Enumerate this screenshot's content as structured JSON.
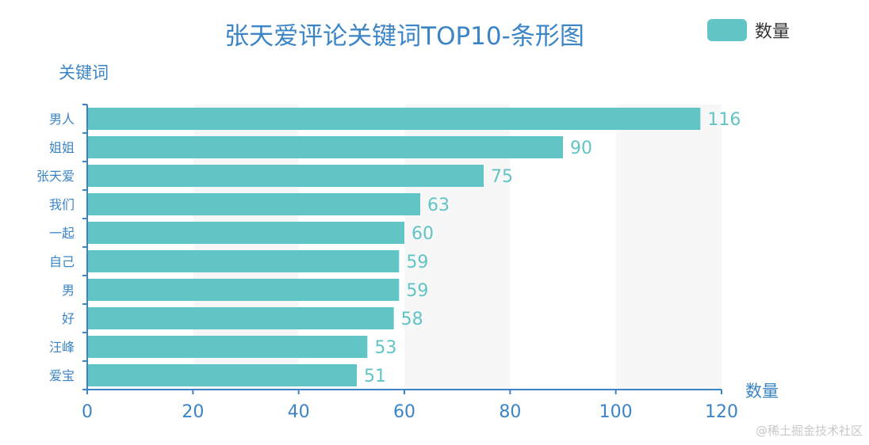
{
  "chart_data": {
    "type": "bar",
    "orientation": "horizontal",
    "title": "张天爱评论关键词TOP10-条形图",
    "ylabel": "关键词",
    "xlabel": "数量",
    "categories": [
      "男人",
      "姐姐",
      "张天爱",
      "我们",
      "一起",
      "自己",
      "男",
      "好",
      "汪峰",
      "爱宝"
    ],
    "series": [
      {
        "name": "数量",
        "values": [
          116,
          90,
          75,
          63,
          60,
          59,
          59,
          58,
          53,
          51
        ],
        "color": "#61c4c5"
      }
    ],
    "xlim": [
      0,
      120
    ],
    "xticks": [
      0,
      20,
      40,
      60,
      80,
      100,
      120
    ],
    "split_area": true,
    "legend": "top-right",
    "axis_color": "#3b84c6"
  },
  "watermark": "@稀土掘金技术社区"
}
